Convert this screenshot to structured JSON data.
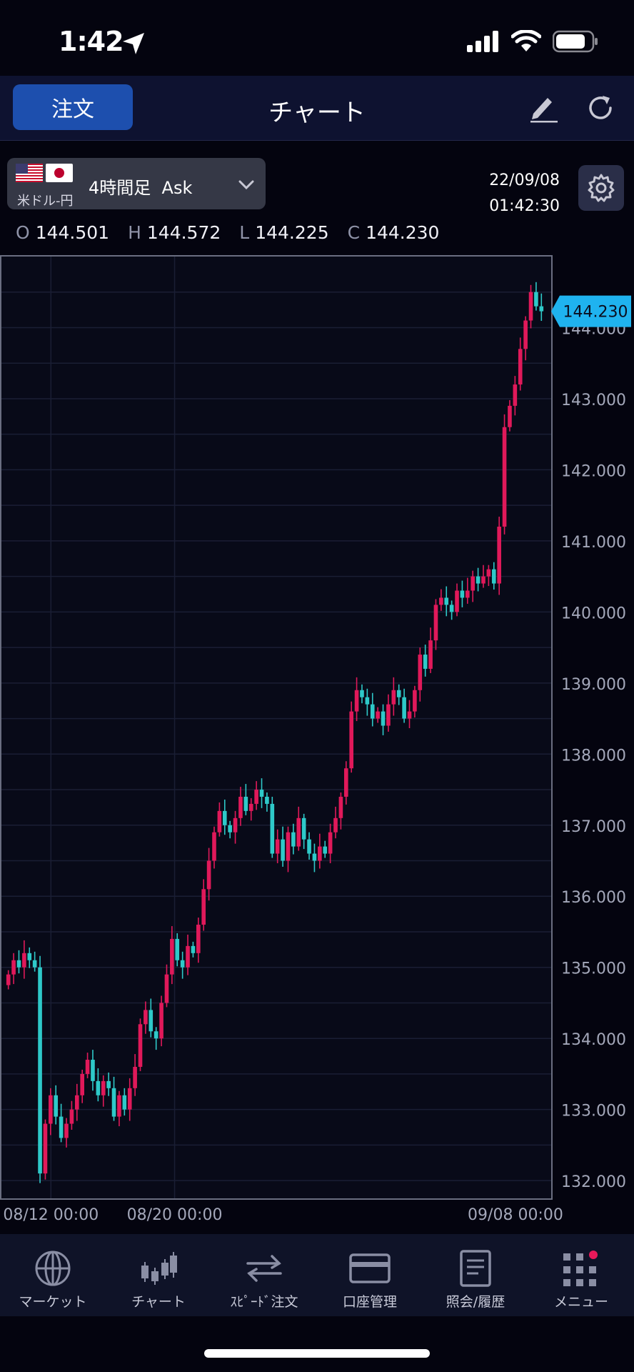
{
  "status_bar": {
    "time": "1:42"
  },
  "nav": {
    "order_label": "注文",
    "title": "チャート"
  },
  "symbol": {
    "name": "米ドル-円",
    "timeframe": "4時間足  Ask"
  },
  "datetime": {
    "date": "22/09/08",
    "time": "01:42:30"
  },
  "ohlc": [
    {
      "key": "O",
      "value": "144.501"
    },
    {
      "key": "H",
      "value": "144.572"
    },
    {
      "key": "L",
      "value": "144.225"
    },
    {
      "key": "C",
      "value": "144.230"
    }
  ],
  "tabs": [
    {
      "label": "マーケット",
      "icon": "globe-icon"
    },
    {
      "label": "チャート",
      "icon": "candlestick-icon"
    },
    {
      "label": "ｽﾋﾟｰﾄﾞ注文",
      "icon": "swap-arrows-icon"
    },
    {
      "label": "口座管理",
      "icon": "card-icon"
    },
    {
      "label": "照会/履歴",
      "icon": "document-icon"
    },
    {
      "label": "メニュー",
      "icon": "grid-menu-icon"
    }
  ],
  "colors": {
    "up": "#e0195a",
    "down": "#2ec9c9",
    "price_badge": "#1fb3ef",
    "accent": "#1d4fae"
  },
  "chart_data": {
    "type": "candlestick",
    "symbol": "USD/JPY",
    "interval": "4H",
    "y_ticks": [
      "144.000",
      "143.000",
      "142.000",
      "141.000",
      "140.000",
      "139.000",
      "138.000",
      "137.000",
      "136.000",
      "135.000",
      "134.000",
      "133.000",
      "132.000"
    ],
    "ylim": [
      131.75,
      145.0
    ],
    "x_ticks": [
      "08/12 00:00",
      "08/20 00:00",
      "09/08 00:00"
    ],
    "current_price": "144.230",
    "current_value": 144.23,
    "closes": [
      134.9,
      135.1,
      135.0,
      135.2,
      135.1,
      135.0,
      132.1,
      132.8,
      133.2,
      132.9,
      132.6,
      132.8,
      133.0,
      133.2,
      133.5,
      133.7,
      133.4,
      133.2,
      133.4,
      133.3,
      132.9,
      133.2,
      133.0,
      133.3,
      133.6,
      134.2,
      134.4,
      134.1,
      134.0,
      134.5,
      134.9,
      135.4,
      135.1,
      135.0,
      135.3,
      135.2,
      135.6,
      136.1,
      136.5,
      136.9,
      137.2,
      137.0,
      136.9,
      137.1,
      137.4,
      137.2,
      137.3,
      137.5,
      137.4,
      137.3,
      136.6,
      136.8,
      136.5,
      136.9,
      136.7,
      137.1,
      136.8,
      136.6,
      136.5,
      136.7,
      136.6,
      136.9,
      137.1,
      137.4,
      137.8,
      138.6,
      138.9,
      138.8,
      138.7,
      138.5,
      138.6,
      138.4,
      138.7,
      138.9,
      138.8,
      138.5,
      138.6,
      138.9,
      139.4,
      139.2,
      139.6,
      140.1,
      140.2,
      140.1,
      140.0,
      140.3,
      140.2,
      140.3,
      140.5,
      140.4,
      140.5,
      140.6,
      140.4,
      141.2,
      142.6,
      142.9,
      143.2,
      143.7,
      144.1,
      144.5,
      144.3,
      144.23
    ]
  }
}
